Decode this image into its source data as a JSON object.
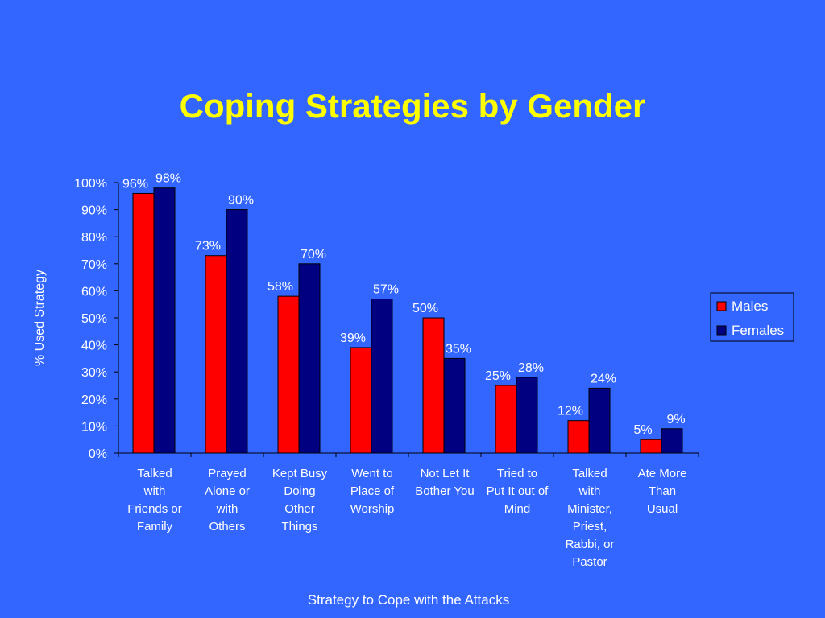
{
  "slide": {
    "title": "Coping Strategies by Gender"
  },
  "chart_data": {
    "type": "bar",
    "title": "Coping Strategies by Gender",
    "xlabel": "Strategy to Cope with the Attacks",
    "ylabel": "% Used Strategy",
    "ylim": [
      0,
      100
    ],
    "yticks": [
      0,
      10,
      20,
      30,
      40,
      50,
      60,
      70,
      80,
      90,
      100
    ],
    "ytick_labels": [
      "0%",
      "10%",
      "20%",
      "30%",
      "40%",
      "50%",
      "60%",
      "70%",
      "80%",
      "90%",
      "100%"
    ],
    "grid": false,
    "legend_position": "right",
    "categories": [
      [
        "Talked",
        "with",
        "Friends or",
        "Family"
      ],
      [
        "Prayed",
        "Alone or",
        "with",
        "Others"
      ],
      [
        "Kept Busy",
        "Doing",
        "Other",
        "Things"
      ],
      [
        "Went to",
        "Place of",
        "Worship"
      ],
      [
        "Not Let It",
        "Bother You"
      ],
      [
        "Tried to",
        "Put It out of",
        "Mind"
      ],
      [
        "Talked",
        "with",
        "Minister,",
        "Priest,",
        "Rabbi, or",
        "Pastor"
      ],
      [
        "Ate More",
        "Than",
        "Usual"
      ]
    ],
    "series": [
      {
        "name": "Males",
        "color": "#ff0000",
        "values": [
          96,
          73,
          58,
          39,
          50,
          25,
          12,
          5
        ],
        "labels": [
          "96%",
          "73%",
          "58%",
          "39%",
          "50%",
          "25%",
          "12%",
          "5%"
        ]
      },
      {
        "name": "Females",
        "color": "#000080",
        "values": [
          98,
          90,
          70,
          57,
          35,
          28,
          24,
          9
        ],
        "labels": [
          "98%",
          "90%",
          "70%",
          "57%",
          "35%",
          "28%",
          "24%",
          "9%"
        ]
      }
    ]
  }
}
